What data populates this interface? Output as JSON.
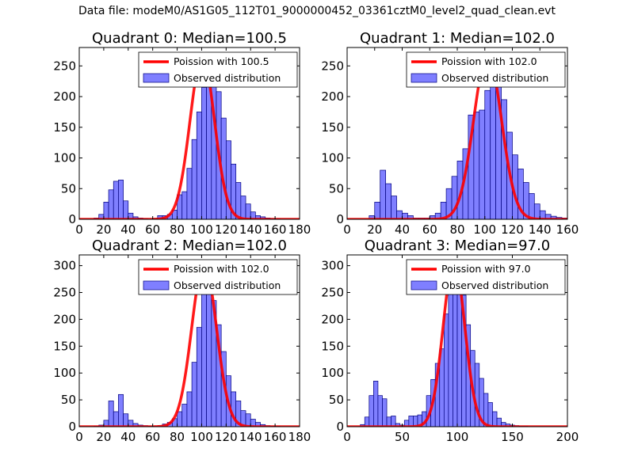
{
  "figure_title": "Data file: modeM0/AS1G05_112T01_9000000452_03361cztM0_level2_quad_clean.evt",
  "colors": {
    "bar_fill": "#7f7fff",
    "bar_edge": "#00007f",
    "poisson_line": "#ff0000"
  },
  "chart_data": [
    {
      "type": "bar",
      "title": "Quadrant 0: Median=100.5",
      "xlim": [
        0,
        180
      ],
      "ylim": [
        0,
        280
      ],
      "xticks": [
        0,
        20,
        40,
        60,
        80,
        100,
        120,
        140,
        160,
        180
      ],
      "yticks": [
        0,
        50,
        100,
        150,
        200,
        250
      ],
      "bin_width": 4,
      "bins": [
        [
          0,
          0
        ],
        [
          4,
          0
        ],
        [
          8,
          0
        ],
        [
          12,
          2
        ],
        [
          16,
          8
        ],
        [
          20,
          28
        ],
        [
          24,
          48
        ],
        [
          28,
          62
        ],
        [
          32,
          64
        ],
        [
          36,
          30
        ],
        [
          40,
          10
        ],
        [
          44,
          4
        ],
        [
          48,
          2
        ],
        [
          52,
          1
        ],
        [
          56,
          0
        ],
        [
          60,
          1
        ],
        [
          64,
          6
        ],
        [
          68,
          6
        ],
        [
          72,
          8
        ],
        [
          76,
          15
        ],
        [
          80,
          40
        ],
        [
          84,
          45
        ],
        [
          88,
          83
        ],
        [
          92,
          130
        ],
        [
          96,
          175
        ],
        [
          100,
          215
        ],
        [
          104,
          258
        ],
        [
          108,
          248
        ],
        [
          112,
          208
        ],
        [
          116,
          165
        ],
        [
          120,
          128
        ],
        [
          124,
          90
        ],
        [
          128,
          60
        ],
        [
          132,
          38
        ],
        [
          136,
          25
        ],
        [
          140,
          12
        ],
        [
          144,
          6
        ],
        [
          148,
          4
        ],
        [
          152,
          2
        ],
        [
          156,
          1
        ],
        [
          160,
          1
        ],
        [
          164,
          0
        ],
        [
          168,
          0
        ],
        [
          172,
          0
        ],
        [
          176,
          0
        ]
      ],
      "poisson_mean": 100.5,
      "poisson_peak": 265,
      "legend": {
        "line_label": "Poission with 100.5",
        "bar_label": "Observed distribution",
        "location": "upper right"
      }
    },
    {
      "type": "bar",
      "title": "Quadrant 1: Median=102.0",
      "xlim": [
        0,
        160
      ],
      "ylim": [
        0,
        280
      ],
      "xticks": [
        0,
        20,
        40,
        60,
        80,
        100,
        120,
        140,
        160
      ],
      "yticks": [
        0,
        50,
        100,
        150,
        200,
        250
      ],
      "bin_width": 4,
      "bins": [
        [
          0,
          0
        ],
        [
          4,
          0
        ],
        [
          8,
          0
        ],
        [
          12,
          0
        ],
        [
          16,
          6
        ],
        [
          20,
          28
        ],
        [
          24,
          80
        ],
        [
          28,
          58
        ],
        [
          32,
          38
        ],
        [
          36,
          14
        ],
        [
          40,
          10
        ],
        [
          44,
          6
        ],
        [
          48,
          2
        ],
        [
          52,
          2
        ],
        [
          56,
          2
        ],
        [
          60,
          6
        ],
        [
          64,
          10
        ],
        [
          68,
          28
        ],
        [
          72,
          50
        ],
        [
          76,
          70
        ],
        [
          80,
          95
        ],
        [
          84,
          115
        ],
        [
          88,
          170
        ],
        [
          92,
          175
        ],
        [
          96,
          178
        ],
        [
          100,
          210
        ],
        [
          104,
          230
        ],
        [
          108,
          258
        ],
        [
          112,
          195
        ],
        [
          116,
          142
        ],
        [
          120,
          105
        ],
        [
          124,
          82
        ],
        [
          128,
          60
        ],
        [
          132,
          42
        ],
        [
          136,
          25
        ],
        [
          140,
          14
        ],
        [
          144,
          8
        ],
        [
          148,
          5
        ],
        [
          152,
          3
        ],
        [
          156,
          2
        ]
      ],
      "poisson_mean": 102.0,
      "poisson_peak": 268,
      "legend": {
        "line_label": "Poission with 102.0",
        "bar_label": "Observed distribution",
        "location": "upper right"
      }
    },
    {
      "type": "bar",
      "title": "Quadrant 2: Median=102.0",
      "xlim": [
        0,
        180
      ],
      "ylim": [
        0,
        320
      ],
      "xticks": [
        0,
        20,
        40,
        60,
        80,
        100,
        120,
        140,
        160,
        180
      ],
      "yticks": [
        0,
        50,
        100,
        150,
        200,
        250,
        300
      ],
      "bin_width": 4,
      "bins": [
        [
          0,
          0
        ],
        [
          4,
          0
        ],
        [
          8,
          0
        ],
        [
          12,
          1
        ],
        [
          16,
          3
        ],
        [
          20,
          12
        ],
        [
          24,
          48
        ],
        [
          28,
          28
        ],
        [
          32,
          60
        ],
        [
          36,
          24
        ],
        [
          40,
          12
        ],
        [
          44,
          6
        ],
        [
          48,
          3
        ],
        [
          52,
          2
        ],
        [
          56,
          1
        ],
        [
          60,
          1
        ],
        [
          64,
          2
        ],
        [
          68,
          5
        ],
        [
          72,
          8
        ],
        [
          76,
          15
        ],
        [
          80,
          28
        ],
        [
          84,
          42
        ],
        [
          88,
          65
        ],
        [
          92,
          120
        ],
        [
          96,
          185
        ],
        [
          100,
          255
        ],
        [
          104,
          300
        ],
        [
          108,
          235
        ],
        [
          112,
          190
        ],
        [
          116,
          140
        ],
        [
          120,
          95
        ],
        [
          124,
          65
        ],
        [
          128,
          48
        ],
        [
          132,
          30
        ],
        [
          136,
          24
        ],
        [
          140,
          14
        ],
        [
          144,
          8
        ],
        [
          148,
          4
        ],
        [
          152,
          2
        ],
        [
          156,
          1
        ],
        [
          160,
          1
        ],
        [
          164,
          0
        ],
        [
          168,
          0
        ],
        [
          172,
          0
        ],
        [
          176,
          0
        ]
      ],
      "poisson_mean": 102.0,
      "poisson_peak": 305,
      "legend": {
        "line_label": "Poission with 102.0",
        "bar_label": "Observed distribution",
        "location": "upper right"
      }
    },
    {
      "type": "bar",
      "title": "Quadrant 3: Median=97.0",
      "xlim": [
        0,
        200
      ],
      "ylim": [
        0,
        320
      ],
      "xticks": [
        0,
        50,
        100,
        150,
        200
      ],
      "yticks": [
        0,
        50,
        100,
        150,
        200,
        250,
        300
      ],
      "bin_width": 4,
      "bins": [
        [
          0,
          0
        ],
        [
          4,
          0
        ],
        [
          8,
          0
        ],
        [
          12,
          4
        ],
        [
          16,
          18
        ],
        [
          20,
          58
        ],
        [
          24,
          85
        ],
        [
          28,
          58
        ],
        [
          32,
          52
        ],
        [
          36,
          18
        ],
        [
          40,
          20
        ],
        [
          44,
          6
        ],
        [
          48,
          3
        ],
        [
          52,
          12
        ],
        [
          56,
          20
        ],
        [
          60,
          20
        ],
        [
          64,
          22
        ],
        [
          68,
          28
        ],
        [
          72,
          58
        ],
        [
          76,
          88
        ],
        [
          80,
          118
        ],
        [
          84,
          145
        ],
        [
          88,
          210
        ],
        [
          92,
          275
        ],
        [
          96,
          305
        ],
        [
          100,
          255
        ],
        [
          104,
          245
        ],
        [
          108,
          190
        ],
        [
          112,
          142
        ],
        [
          116,
          118
        ],
        [
          120,
          90
        ],
        [
          124,
          62
        ],
        [
          128,
          45
        ],
        [
          132,
          28
        ],
        [
          136,
          16
        ],
        [
          140,
          8
        ],
        [
          144,
          5
        ],
        [
          148,
          3
        ],
        [
          152,
          2
        ],
        [
          156,
          1
        ],
        [
          160,
          1
        ],
        [
          164,
          0
        ],
        [
          168,
          0
        ],
        [
          172,
          0
        ],
        [
          176,
          0
        ],
        [
          180,
          0
        ],
        [
          184,
          0
        ],
        [
          188,
          0
        ]
      ],
      "poisson_mean": 97.0,
      "poisson_peak": 308,
      "legend": {
        "line_label": "Poission with 97.0",
        "bar_label": "Observed distribution",
        "location": "upper right"
      }
    }
  ]
}
